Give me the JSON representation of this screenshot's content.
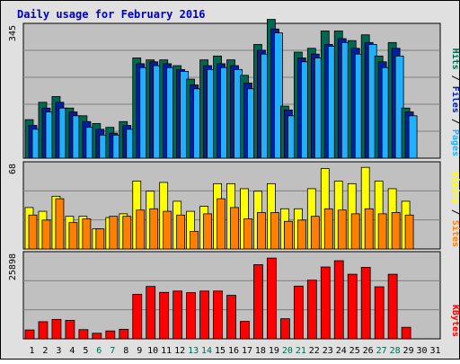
{
  "title": "Daily usage for February 2016",
  "colors": {
    "background": "#e0e0e0",
    "plot": "#c0c0c0",
    "title": "#0000c0",
    "hits": "#006850",
    "files": "#0020a0",
    "pages": "#20b0ff",
    "visits": "#ffff00",
    "sites": "#ff8000",
    "kbytes": "#ff0000",
    "weekday_label": "#000000",
    "weekend_label": "#006850"
  },
  "chart_data": [
    {
      "type": "bar",
      "panel": "hits-files-pages",
      "ymax": 345,
      "ymax_label": "345",
      "side_labels": [
        "Pages",
        "Files",
        "Hits"
      ],
      "categories": [
        "1",
        "2",
        "3",
        "4",
        "5",
        "6",
        "7",
        "8",
        "9",
        "10",
        "11",
        "12",
        "13",
        "14",
        "15",
        "16",
        "17",
        "18",
        "19",
        "20",
        "21",
        "22",
        "23",
        "24",
        "25",
        "26",
        "27",
        "28",
        "29",
        "30",
        "31"
      ],
      "series": [
        {
          "name": "Hits",
          "values": [
            100,
            145,
            160,
            130,
            110,
            90,
            80,
            95,
            260,
            255,
            255,
            240,
            205,
            255,
            265,
            255,
            215,
            295,
            360,
            135,
            275,
            285,
            330,
            330,
            305,
            320,
            265,
            300,
            130,
            null,
            null
          ]
        },
        {
          "name": "Files",
          "values": [
            85,
            130,
            145,
            120,
            95,
            75,
            65,
            85,
            245,
            250,
            245,
            230,
            190,
            240,
            245,
            240,
            195,
            280,
            335,
            125,
            260,
            270,
            295,
            310,
            285,
            300,
            250,
            285,
            120,
            null,
            null
          ]
        },
        {
          "name": "Pages",
          "values": [
            75,
            120,
            130,
            110,
            80,
            60,
            60,
            75,
            235,
            240,
            235,
            225,
            180,
            230,
            235,
            230,
            180,
            270,
            325,
            110,
            250,
            260,
            290,
            300,
            270,
            295,
            235,
            265,
            110,
            null,
            null
          ]
        }
      ]
    },
    {
      "type": "bar",
      "panel": "visits-sites",
      "ymax": 68,
      "ymax_label": "68",
      "side_labels": [
        "Sites",
        "Visits"
      ],
      "categories": [
        "1",
        "2",
        "3",
        "4",
        "5",
        "6",
        "7",
        "8",
        "9",
        "10",
        "11",
        "12",
        "13",
        "14",
        "15",
        "16",
        "17",
        "18",
        "19",
        "20",
        "21",
        "22",
        "23",
        "24",
        "25",
        "26",
        "27",
        "28",
        "29",
        "30",
        "31"
      ],
      "series": [
        {
          "name": "Visits",
          "values": [
            33,
            30,
            42,
            26,
            26,
            16,
            25,
            28,
            54,
            46,
            53,
            38,
            30,
            34,
            52,
            52,
            48,
            46,
            52,
            32,
            32,
            48,
            64,
            54,
            52,
            65,
            54,
            48,
            38,
            null,
            null
          ]
        },
        {
          "name": "Sites",
          "values": [
            27,
            23,
            40,
            21,
            24,
            16,
            26,
            26,
            31,
            32,
            30,
            27,
            14,
            28,
            40,
            33,
            24,
            29,
            29,
            22,
            23,
            26,
            32,
            31,
            28,
            32,
            28,
            29,
            27,
            null,
            null
          ]
        }
      ]
    },
    {
      "type": "bar",
      "panel": "kbytes",
      "ymax": 25898,
      "ymax_label": "25898",
      "side_labels": [
        "KBytes"
      ],
      "categories": [
        "1",
        "2",
        "3",
        "4",
        "5",
        "6",
        "7",
        "8",
        "9",
        "10",
        "11",
        "12",
        "13",
        "14",
        "15",
        "16",
        "17",
        "18",
        "19",
        "20",
        "21",
        "22",
        "23",
        "24",
        "25",
        "26",
        "27",
        "28",
        "29",
        "30",
        "31"
      ],
      "series": [
        {
          "name": "KBytes",
          "values": [
            2700,
            5200,
            5900,
            5600,
            2800,
            1700,
            2400,
            2900,
            13500,
            15900,
            14100,
            14500,
            14000,
            14500,
            14500,
            13200,
            5300,
            22500,
            24500,
            6100,
            16000,
            17800,
            21800,
            23700,
            19600,
            21700,
            15800,
            19600,
            3500,
            null,
            null
          ]
        }
      ]
    }
  ],
  "x_labels": {
    "days": [
      "1",
      "2",
      "3",
      "4",
      "5",
      "6",
      "7",
      "8",
      "9",
      "10",
      "11",
      "12",
      "13",
      "14",
      "15",
      "16",
      "17",
      "18",
      "19",
      "20",
      "21",
      "22",
      "23",
      "24",
      "25",
      "26",
      "27",
      "28",
      "29",
      "30",
      "31"
    ],
    "weekend_days": [
      "6",
      "7",
      "13",
      "14",
      "20",
      "21",
      "27",
      "28"
    ]
  }
}
